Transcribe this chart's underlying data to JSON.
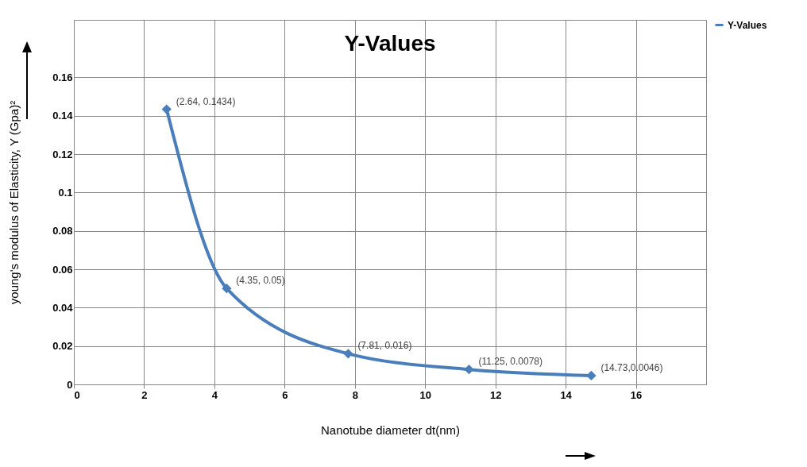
{
  "chart_data": {
    "type": "line",
    "title": "Y-Values",
    "xlabel": "Nanotube diameter dt(nm)",
    "ylabel": "young's modulus of Elasticity, Y (Gpa)²",
    "x": [
      2.64,
      4.35,
      7.81,
      11.25,
      14.73
    ],
    "series": [
      {
        "name": "Y-Values",
        "color": "#4a7ebb",
        "values": [
          0.1434,
          0.05,
          0.016,
          0.0078,
          0.0046
        ]
      }
    ],
    "xlim": [
      0,
      18
    ],
    "xticks": [
      0,
      2,
      4,
      6,
      8,
      10,
      12,
      14,
      16
    ],
    "ylim": [
      0,
      0.19
    ],
    "yticks": [
      0,
      0.02,
      0.04,
      0.06,
      0.08,
      0.1,
      0.12,
      0.14,
      0.16
    ],
    "annotations": [
      {
        "text": "(2.64, 0.1434)",
        "x": 2.64,
        "y": 0.1434
      },
      {
        "text": "(4.35, 0.05)",
        "x": 4.35,
        "y": 0.05
      },
      {
        "text": "(7.81, 0.016)",
        "x": 7.81,
        "y": 0.016
      },
      {
        "text": "(11.25, 0.0078)",
        "x": 11.25,
        "y": 0.0078
      },
      {
        "text": "(14.73,0.0046)",
        "x": 14.73,
        "y": 0.0046
      }
    ],
    "grid": true,
    "legend": "right",
    "marker": "diamond",
    "line_style": "solid"
  }
}
